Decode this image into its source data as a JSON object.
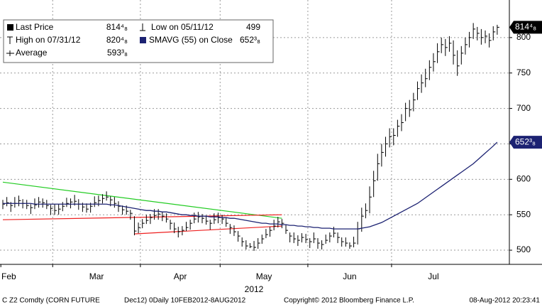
{
  "chart_data": {
    "type": "ohlc",
    "categories": [
      "Feb",
      null,
      null,
      null,
      null,
      null,
      null,
      null,
      null,
      null,
      null,
      null,
      null,
      "Mar",
      null,
      null,
      null,
      null,
      null,
      null,
      null,
      null,
      null,
      null,
      null,
      null,
      null,
      null,
      null,
      null,
      null,
      null,
      null,
      null,
      null,
      "Apr",
      null,
      null,
      null,
      null,
      null,
      null,
      null,
      null,
      null,
      null,
      null,
      null,
      null,
      null,
      null,
      null,
      null,
      null,
      null,
      "May",
      null,
      null,
      null,
      null,
      null,
      null,
      null,
      null,
      null,
      null,
      null,
      null,
      null,
      null,
      null,
      null,
      null,
      null,
      null,
      null,
      null,
      "Jun",
      null,
      null,
      null,
      null,
      null,
      null,
      null,
      null,
      null,
      null,
      null,
      null,
      null,
      null,
      null,
      null,
      null,
      null,
      null,
      null,
      "Jul",
      null,
      null,
      null,
      null,
      null,
      null,
      null,
      null,
      null,
      null,
      null,
      null,
      null,
      null,
      null,
      null,
      null,
      null,
      null,
      null,
      null,
      null,
      null,
      null,
      null,
      null
    ],
    "x_sublabel": "2012",
    "series": [
      {
        "name": "Last Price",
        "color": "#000000",
        "high": [
          571,
          575,
          568,
          575,
          577,
          572,
          571,
          565,
          573,
          575,
          573,
          571,
          564,
          565,
          565,
          568,
          574,
          573,
          578,
          572,
          567,
          566,
          567,
          576,
          577,
          579,
          583,
          576,
          575,
          569,
          563,
          563,
          557,
          548,
          539,
          544,
          550,
          551,
          558,
          558,
          554,
          552,
          543,
          539,
          533,
          534,
          540,
          543,
          553,
          554,
          551,
          549,
          543,
          552,
          553,
          550,
          546,
          537,
          535,
          527,
          518,
          514,
          510,
          513,
          517,
          522,
          530,
          533,
          543,
          547,
          544,
          536,
          525,
          525,
          521,
          524,
          523,
          517,
          525,
          517,
          514,
          522,
          525,
          533,
          525,
          518,
          518,
          511,
          519,
          540,
          560,
          566,
          590,
          612,
          636,
          650,
          660,
          672,
          672,
          684,
          692,
          708,
          712,
          722,
          738,
          748,
          756,
          768,
          778,
          792,
          800,
          798,
          802,
          796,
          782,
          788,
          800,
          808,
          820.5,
          815,
          812,
          810,
          806,
          816,
          818
        ],
        "low": [
          558,
          562,
          554,
          560,
          562,
          559,
          558,
          551,
          558,
          560,
          560,
          558,
          550,
          550,
          550,
          555,
          561,
          559,
          563,
          557,
          554,
          553,
          553,
          561,
          562,
          566,
          570,
          562,
          560,
          554,
          550,
          550,
          543,
          521,
          524,
          531,
          537,
          537,
          543,
          543,
          541,
          539,
          529,
          524,
          518,
          521,
          527,
          529,
          538,
          539,
          538,
          536,
          529,
          537,
          538,
          537,
          533,
          523,
          520,
          512,
          505,
          501,
          503,
          499,
          502,
          509,
          517,
          519,
          528,
          532,
          531,
          523,
          511,
          510,
          506,
          511,
          510,
          503,
          510,
          502,
          501,
          509,
          511,
          518,
          510,
          505,
          505,
          502,
          504,
          508,
          526,
          545,
          552,
          575,
          598,
          618,
          632,
          645,
          648,
          660,
          668,
          682,
          688,
          696,
          712,
          722,
          730,
          740,
          752,
          764,
          778,
          774,
          780,
          762,
          746,
          762,
          776,
          786,
          798,
          796,
          790,
          792,
          786,
          796,
          804
        ],
        "values": [
          565,
          567,
          563,
          566,
          570,
          566,
          563,
          560,
          564,
          568,
          567,
          563,
          559,
          556,
          558,
          562,
          566,
          568,
          569,
          565,
          561,
          558,
          562,
          567,
          570,
          573,
          575,
          571,
          566,
          562,
          557,
          555,
          552,
          527,
          532,
          538,
          542,
          546,
          549,
          551,
          548,
          544,
          538,
          530,
          526,
          528,
          532,
          538,
          544,
          547,
          545,
          541,
          538,
          543,
          546,
          544,
          538,
          532,
          526,
          520,
          512,
          506,
          505,
          504,
          510,
          516,
          522,
          528,
          534,
          540,
          538,
          528,
          520,
          516,
          514,
          518,
          515,
          512,
          516,
          510,
          508,
          514,
          520,
          524,
          518,
          512,
          510,
          506,
          510,
          530,
          548,
          556,
          575,
          598,
          622,
          638,
          650,
          660,
          662,
          675,
          680,
          700,
          698,
          712,
          728,
          736,
          742,
          758,
          766,
          780,
          790,
          786,
          792,
          775,
          760,
          778,
          790,
          800,
          812,
          806,
          800,
          802,
          796,
          808,
          814.5
        ]
      },
      {
        "name": "SMAVG (55) on Close",
        "color": "#1c2272",
        "values": [
          566,
          566,
          566,
          566,
          566,
          566,
          566,
          566,
          565,
          565,
          565,
          565,
          565,
          565,
          565,
          565,
          565,
          565,
          565,
          565,
          565,
          565,
          565,
          565,
          565,
          565,
          565,
          564,
          564,
          563,
          562,
          561,
          560,
          559,
          558,
          557,
          556,
          556,
          555,
          555,
          554,
          554,
          553,
          552,
          551,
          550,
          550,
          549,
          549,
          548,
          548,
          548,
          547,
          547,
          547,
          546,
          546,
          545,
          545,
          544,
          543,
          542,
          541,
          540,
          539,
          538,
          538,
          537,
          537,
          537,
          536,
          536,
          535,
          535,
          534,
          534,
          533,
          533,
          532,
          532,
          531,
          531,
          531,
          530,
          530,
          530,
          530,
          530,
          530,
          530,
          531,
          532,
          533,
          535,
          537,
          539,
          542,
          545,
          548,
          551,
          554,
          557,
          560,
          563,
          566,
          570,
          574,
          578,
          582,
          586,
          590,
          594,
          598,
          602,
          606,
          610,
          614,
          618,
          622,
          627,
          632,
          637,
          642,
          647,
          652.375
        ]
      }
    ],
    "trendlines": [
      {
        "color": "#22cc22",
        "x": [
          0,
          70
        ],
        "values": [
          596,
          545
        ]
      },
      {
        "color": "#ee2020",
        "x": [
          0,
          70
        ],
        "values": [
          543,
          550
        ]
      },
      {
        "color": "#ee2020",
        "x": [
          33,
          70
        ],
        "values": [
          523,
          534
        ]
      }
    ],
    "legend": {
      "last_value": "814⁴₈",
      "low_label": "Low on 05/11/12",
      "low_value": "499",
      "high_label": "High on 07/31/12",
      "high_value": "820⁴₈",
      "sma_value": "652³₈",
      "average_label": "Average",
      "average_value": "593³₈"
    },
    "ylim": [
      480,
      853
    ],
    "yticks": [
      500,
      550,
      600,
      650,
      700,
      750,
      800
    ],
    "grid": true,
    "footer": {
      "left": "C Z2 Comdty (CORN FUTURE",
      "middle": "Dec12) 0Daily 10FEB2012-8AUG2012",
      "copyright": "Copyright© 2012 Bloomberg Finance L.P.",
      "timestamp": "08-Aug-2012 20:23:41"
    }
  }
}
